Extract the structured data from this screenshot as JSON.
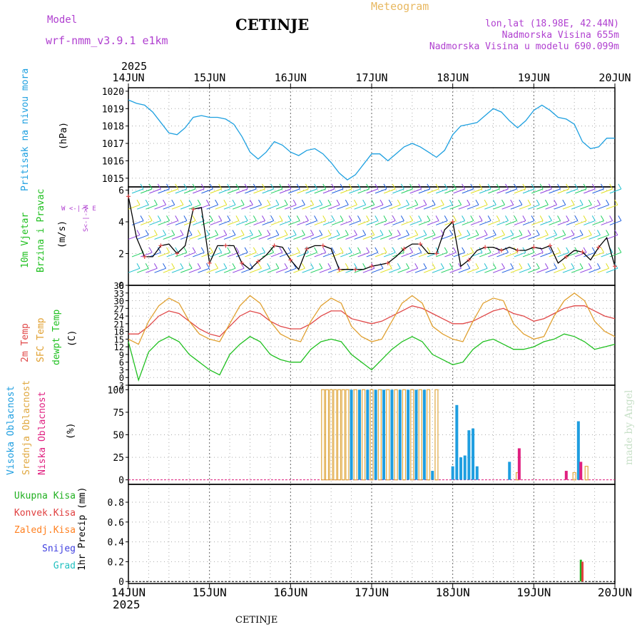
{
  "header": {
    "model_label": "Model",
    "model_name": "wrf-nmm_v3.9.1 e1km",
    "city": "CETINJE",
    "meteogram": "Meteogram",
    "lonlat": "lon,lat (18.98E, 42.44N)",
    "altitude": "Nadmorska Visina 655m",
    "model_altitude": "Nadmorska Visina u modelu 690.099m",
    "year_top": "2025",
    "year_bottom": "2025",
    "footer_city": "CETINJE",
    "credit": "made by Angel"
  },
  "x_axis": {
    "ticks": [
      "14JUN",
      "15JUN",
      "16JUN",
      "17JUN",
      "18JUN",
      "19JUN",
      "20JUN"
    ]
  },
  "colors": {
    "pressure": "#1ea0e0",
    "wind_speed": "#000000",
    "temp2m": "#e04848",
    "sfc_temp": "#e0a030",
    "dewpt": "#20c020",
    "high_cloud": "#1e9ee0",
    "mid_cloud": "#e0a840",
    "low_cloud": "#e02080",
    "total_precip": "#20b020",
    "conv_precip": "#e04040",
    "frozen_precip": "#ff8020",
    "snow": "#4040e0",
    "hail": "#20c0c0",
    "purple_text": "#b040d0"
  },
  "chart_data": [
    {
      "type": "line",
      "name": "pressure",
      "ylabel_main": "Pritisak na nivou mora",
      "ylabel_unit": "(hPa)",
      "ylim": [
        1014.5,
        1020.2
      ],
      "yticks": [
        1015,
        1016,
        1017,
        1018,
        1019,
        1020
      ],
      "ytick_labels": [
        "1015",
        "1016",
        "1017",
        "1018",
        "1019",
        "1020"
      ],
      "x": [
        0,
        0.1,
        0.2,
        0.3,
        0.4,
        0.5,
        0.6,
        0.7,
        0.8,
        0.9,
        1.0,
        1.1,
        1.2,
        1.3,
        1.4,
        1.5,
        1.6,
        1.7,
        1.8,
        1.9,
        2.0,
        2.1,
        2.2,
        2.3,
        2.4,
        2.5,
        2.6,
        2.7,
        2.8,
        2.9,
        3.0,
        3.1,
        3.2,
        3.3,
        3.4,
        3.5,
        3.6,
        3.7,
        3.8,
        3.9,
        4.0,
        4.1,
        4.2,
        4.3,
        4.4,
        4.5,
        4.6,
        4.7,
        4.8,
        4.9,
        5.0,
        5.1,
        5.2,
        5.3,
        5.4,
        5.5,
        5.6,
        5.7,
        5.8,
        5.9,
        6.0
      ],
      "values": [
        1019.5,
        1019.3,
        1019.2,
        1018.8,
        1018.2,
        1017.6,
        1017.5,
        1017.9,
        1018.5,
        1018.6,
        1018.5,
        1018.5,
        1018.4,
        1018.1,
        1017.4,
        1016.5,
        1016.1,
        1016.5,
        1017.1,
        1016.9,
        1016.5,
        1016.3,
        1016.6,
        1016.7,
        1016.4,
        1015.9,
        1015.3,
        1014.9,
        1015.2,
        1015.8,
        1016.4,
        1016.4,
        1016.0,
        1016.4,
        1016.8,
        1017.0,
        1016.8,
        1016.5,
        1016.2,
        1016.6,
        1017.5,
        1018.0,
        1018.1,
        1018.2,
        1018.6,
        1019.0,
        1018.8,
        1018.3,
        1017.9,
        1018.3,
        1018.9,
        1019.2,
        1018.9,
        1018.5,
        1018.4,
        1018.1,
        1017.1,
        1016.7,
        1016.8,
        1017.3,
        1017.3
      ]
    },
    {
      "type": "line",
      "name": "wind",
      "ylabel_main": "10m Vjetar",
      "ylabel_main2": "Brzina i Pravac",
      "ylabel_unit": "(m/s)",
      "compass": "W <-|-> E",
      "compass_v": "S<-|->N",
      "ylim": [
        0,
        6.2
      ],
      "yticks": [
        0,
        2,
        4,
        6
      ],
      "ytick_labels": [
        "0",
        "2",
        "4",
        "6"
      ],
      "x": [
        0,
        0.1,
        0.2,
        0.3,
        0.4,
        0.5,
        0.6,
        0.7,
        0.8,
        0.9,
        1.0,
        1.1,
        1.2,
        1.3,
        1.4,
        1.5,
        1.6,
        1.7,
        1.8,
        1.9,
        2.0,
        2.1,
        2.2,
        2.3,
        2.4,
        2.5,
        2.6,
        2.7,
        2.8,
        2.9,
        3.0,
        3.1,
        3.2,
        3.3,
        3.4,
        3.5,
        3.6,
        3.7,
        3.8,
        3.9,
        4.0,
        4.1,
        4.2,
        4.3,
        4.4,
        4.5,
        4.6,
        4.7,
        4.8,
        4.9,
        5.0,
        5.1,
        5.2,
        5.3,
        5.4,
        5.5,
        5.6,
        5.7,
        5.8,
        5.9,
        6.0
      ],
      "values": [
        5.6,
        3.0,
        1.8,
        1.8,
        2.5,
        2.6,
        2.0,
        2.5,
        4.8,
        4.9,
        1.4,
        2.5,
        2.5,
        2.5,
        1.4,
        1.0,
        1.5,
        1.9,
        2.5,
        2.4,
        1.6,
        1.0,
        2.3,
        2.5,
        2.5,
        2.3,
        1.0,
        1.0,
        1.0,
        1.0,
        1.2,
        1.3,
        1.4,
        1.8,
        2.3,
        2.6,
        2.6,
        2.0,
        2.0,
        3.5,
        4.0,
        1.2,
        1.6,
        2.2,
        2.4,
        2.4,
        2.2,
        2.4,
        2.2,
        2.2,
        2.4,
        2.3,
        2.5,
        1.4,
        1.8,
        2.2,
        2.1,
        1.6,
        2.4,
        3.0,
        1.2
      ]
    },
    {
      "type": "line",
      "name": "temperature",
      "ylabel_main": "2m Temp",
      "ylabel_main2": "SFC Temp",
      "ylabel_main3": "dewpt Temp",
      "ylabel_unit": "(C)",
      "ylim": [
        -3,
        36
      ],
      "yticks": [
        -3,
        0,
        3,
        6,
        9,
        12,
        15,
        18,
        21,
        24,
        27,
        30,
        33,
        36
      ],
      "ytick_labels": [
        "-3",
        "0",
        "3",
        "6",
        "9",
        "12",
        "15",
        "18",
        "21",
        "24",
        "27",
        "30",
        "33",
        "36"
      ],
      "x": [
        0,
        0.125,
        0.25,
        0.375,
        0.5,
        0.625,
        0.75,
        0.875,
        1.0,
        1.125,
        1.25,
        1.375,
        1.5,
        1.625,
        1.75,
        1.875,
        2.0,
        2.125,
        2.25,
        2.375,
        2.5,
        2.625,
        2.75,
        2.875,
        3.0,
        3.125,
        3.25,
        3.375,
        3.5,
        3.625,
        3.75,
        3.875,
        4.0,
        4.125,
        4.25,
        4.375,
        4.5,
        4.625,
        4.75,
        4.875,
        5.0,
        5.125,
        5.25,
        5.375,
        5.5,
        5.625,
        5.75,
        5.875,
        6.0
      ],
      "series": [
        {
          "name": "2m Temp",
          "values": [
            17,
            17,
            20,
            24,
            26,
            25,
            22,
            19,
            17,
            16,
            20,
            24,
            26,
            25,
            22,
            20,
            19,
            19,
            21,
            24,
            26,
            26,
            23,
            22,
            21,
            22,
            24,
            26,
            28,
            27,
            25,
            23,
            21,
            21,
            22,
            24,
            26,
            27,
            25,
            24,
            22,
            23,
            25,
            27,
            28,
            28,
            26,
            24,
            23
          ]
        },
        {
          "name": "SFC Temp",
          "values": [
            15,
            13,
            22,
            28,
            31,
            29,
            22,
            17,
            15,
            14,
            21,
            28,
            32,
            29,
            22,
            17,
            15,
            14,
            22,
            28,
            31,
            29,
            20,
            16,
            14,
            15,
            22,
            29,
            32,
            29,
            20,
            17,
            15,
            14,
            22,
            29,
            31,
            30,
            21,
            17,
            15,
            16,
            24,
            30,
            33,
            30,
            22,
            18,
            16
          ]
        },
        {
          "name": "dewpt Temp",
          "values": [
            14,
            -1,
            10,
            14,
            16,
            14,
            9,
            6,
            3,
            1,
            9,
            13,
            16,
            14,
            9,
            7,
            6,
            6,
            11,
            14,
            15,
            14,
            9,
            6,
            3,
            7,
            11,
            14,
            16,
            14,
            9,
            7,
            5,
            6,
            11,
            14,
            15,
            13,
            11,
            11,
            12,
            14,
            15,
            17,
            16,
            14,
            11,
            12,
            13
          ]
        }
      ]
    },
    {
      "type": "bar",
      "name": "clouds",
      "ylabel_main": "Visoka Oblacnost",
      "ylabel_main2": "Srednja Oblacnost",
      "ylabel_main3": "Niska Oblacnost",
      "ylabel_unit": "(%)",
      "ylim": [
        -5,
        105
      ],
      "yticks": [
        0,
        25,
        50,
        75,
        100
      ],
      "ytick_labels": [
        "0",
        "25",
        "50",
        "75",
        "100"
      ],
      "series": [
        {
          "name": "Visoka Oblacnost",
          "x": [
            2.75,
            2.85,
            2.95,
            3.05,
            3.15,
            3.25,
            3.35,
            3.45,
            3.55,
            3.65,
            3.75,
            4.0,
            4.05,
            4.1,
            4.15,
            4.2,
            4.25,
            4.3,
            4.7,
            5.55
          ],
          "values": [
            100,
            100,
            100,
            100,
            100,
            100,
            100,
            100,
            100,
            100,
            10,
            15,
            83,
            25,
            27,
            55,
            57,
            15,
            20,
            65
          ]
        },
        {
          "name": "Srednja Oblacnost",
          "x": [
            2.4,
            2.45,
            2.5,
            2.55,
            2.6,
            2.65,
            2.7,
            2.8,
            2.9,
            3.0,
            3.1,
            3.2,
            3.3,
            3.4,
            3.5,
            3.6,
            3.7,
            3.8,
            4.8,
            5.5,
            5.65
          ],
          "values": [
            100,
            100,
            100,
            100,
            100,
            100,
            100,
            100,
            100,
            100,
            100,
            100,
            100,
            100,
            100,
            100,
            100,
            100,
            8,
            8,
            15
          ]
        },
        {
          "name": "Niska Oblacnost",
          "x": [
            4.82,
            5.4,
            5.58
          ],
          "values": [
            35,
            10,
            20
          ]
        }
      ]
    },
    {
      "type": "bar",
      "name": "precipitation",
      "labels": [
        "Ukupna Kisa",
        "Konvek.Kisa",
        "Zaledj.Kisa",
        "Snijeg",
        "Grad"
      ],
      "ylabel_unit": "1hr Precip (mm)",
      "ylim": [
        -0.02,
        0.98
      ],
      "yticks": [
        0,
        0.2,
        0.4,
        0.6,
        0.8
      ],
      "ytick_labels": [
        "0",
        "0.2",
        "0.4",
        "0.6",
        "0.8"
      ],
      "series": [
        {
          "name": "Ukupna Kisa",
          "x": [
            5.58
          ],
          "values": [
            0.22
          ]
        },
        {
          "name": "Konvek.Kisa",
          "x": [
            5.6
          ],
          "values": [
            0.2
          ]
        }
      ]
    }
  ]
}
